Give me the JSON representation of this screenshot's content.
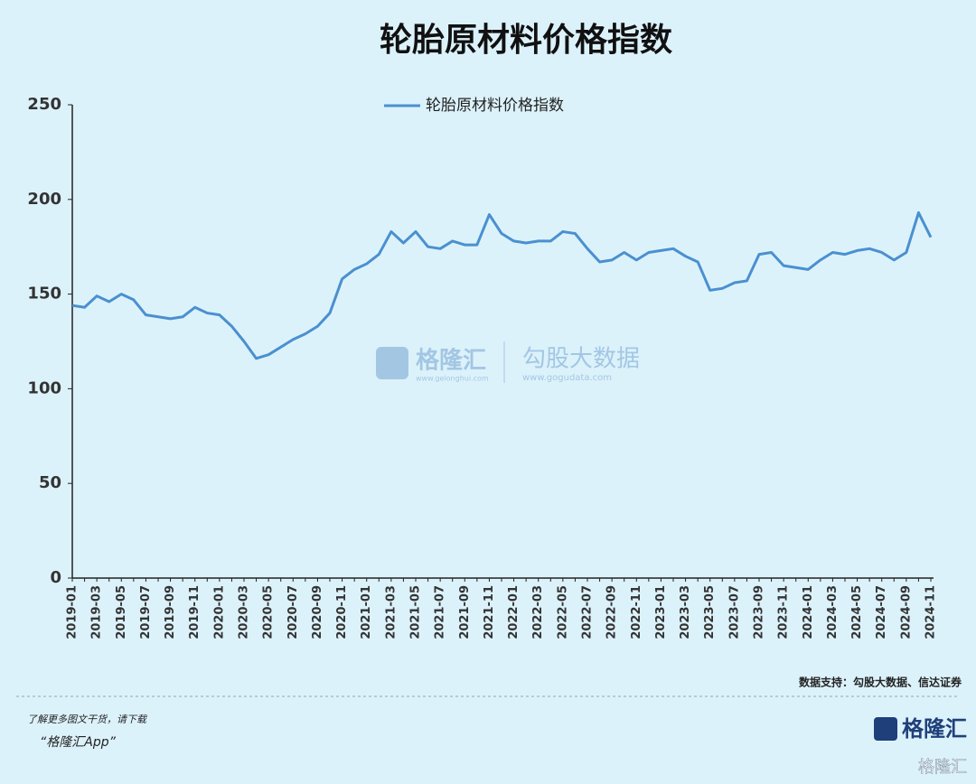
{
  "chart_data": {
    "type": "line",
    "title": "轮胎原材料价格指数",
    "categories": [
      "2019-01",
      null,
      "2019-03",
      null,
      "2019-05",
      null,
      "2019-07",
      null,
      "2019-09",
      null,
      "2019-11",
      null,
      "2020-01",
      null,
      "2020-03",
      null,
      "2020-05",
      null,
      "2020-07",
      null,
      "2020-09",
      null,
      "2020-11",
      null,
      "2021-01",
      null,
      "2021-03",
      null,
      "2021-05",
      null,
      "2021-07",
      null,
      "2021-09",
      null,
      "2021-11",
      null,
      "2022-01",
      null,
      "2022-03",
      null,
      "2022-05",
      null,
      "2022-07",
      null,
      "2022-09",
      null,
      "2022-11",
      null,
      "2023-01",
      null,
      "2023-03",
      null,
      "2023-05",
      null,
      "2023-07",
      null,
      "2023-09",
      null,
      "2023-11",
      null,
      "2024-01",
      null,
      "2024-03",
      null,
      "2024-05",
      null,
      "2024-07",
      null,
      "2024-09",
      null,
      "2024-11"
    ],
    "series": [
      {
        "name": "轮胎原材料价格指数",
        "color": "#4a90d0",
        "values": [
          144,
          143,
          149,
          146,
          150,
          147,
          139,
          138,
          137,
          138,
          143,
          140,
          139,
          133,
          125,
          116,
          118,
          122,
          126,
          129,
          133,
          140,
          158,
          163,
          166,
          171,
          183,
          177,
          183,
          175,
          174,
          178,
          176,
          176,
          192,
          182,
          178,
          177,
          178,
          178,
          183,
          182,
          174,
          167,
          168,
          172,
          168,
          172,
          173,
          174,
          170,
          167,
          152,
          153,
          156,
          157,
          171,
          172,
          165,
          164,
          163,
          168,
          172,
          171,
          173,
          174,
          172,
          168,
          172,
          193,
          180
        ]
      }
    ],
    "ylim": [
      0,
      250
    ],
    "yticks": [
      0,
      50,
      100,
      150,
      200,
      250
    ],
    "grid": false,
    "legend": "top"
  },
  "source": "数据支持：勾股大数据、信达证券",
  "watermark": {
    "brand": "格隆汇",
    "brand_url": "www.gelonghui.com",
    "partner": "勾股大数据",
    "partner_url": "www.gogudata.com"
  },
  "footer": {
    "line1": "了解更多图文干货，请下载",
    "line2": "“格隆汇App”",
    "logo": "格隆汇",
    "corner": "格隆汇"
  }
}
